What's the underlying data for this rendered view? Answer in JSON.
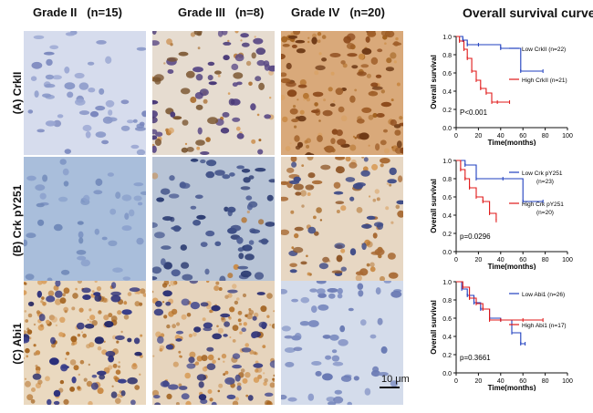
{
  "column_headers": [
    "Grade II",
    "(n=15)",
    "Grade III",
    "(n=8)",
    "Grade IV",
    "(n=20)"
  ],
  "row_labels": [
    "(A)  CrkII",
    "(B) Crk pY251",
    "(C)   Abi1"
  ],
  "scale_bar": "10 μm",
  "survival_title": "Overall survival curve",
  "colors": {
    "low": "#1f3fbf",
    "high": "#e01818"
  },
  "chart_data": [
    {
      "type": "line",
      "xlabel": "Time(months)",
      "ylabel": "Overall survival",
      "xlim": [
        0,
        100
      ],
      "ylim": [
        0,
        1.0
      ],
      "xticks": [
        0,
        20,
        40,
        60,
        80,
        100
      ],
      "yticks": [
        0.0,
        0.2,
        0.4,
        0.6,
        0.8,
        1.0
      ],
      "annotation": "P<0.001",
      "series": [
        {
          "name": "Low CrkII (n=22)",
          "color": "#1f3fbf",
          "x": [
            0,
            6,
            10,
            20,
            40,
            58,
            78
          ],
          "y": [
            1.0,
            0.96,
            0.91,
            0.91,
            0.87,
            0.62,
            0.62
          ]
        },
        {
          "name": "High CrkII (n=21)",
          "color": "#e01818",
          "x": [
            0,
            3,
            7,
            10,
            14,
            18,
            22,
            27,
            32,
            37,
            48
          ],
          "y": [
            1.0,
            0.95,
            0.86,
            0.76,
            0.62,
            0.52,
            0.43,
            0.38,
            0.28,
            0.28,
            0.28
          ]
        }
      ]
    },
    {
      "type": "line",
      "xlabel": "Time(months)",
      "ylabel": "Overall survival",
      "xlim": [
        0,
        100
      ],
      "ylim": [
        0,
        1.0
      ],
      "xticks": [
        0,
        20,
        40,
        60,
        80,
        100
      ],
      "yticks": [
        0.0,
        0.2,
        0.4,
        0.6,
        0.8,
        1.0
      ],
      "annotation": "p=0.0296",
      "series": [
        {
          "name": "Low Crk pY251",
          "sub": "(n=23)",
          "color": "#1f3fbf",
          "x": [
            0,
            8,
            18,
            42,
            60,
            78
          ],
          "y": [
            1.0,
            0.95,
            0.8,
            0.8,
            0.55,
            0.55
          ]
        },
        {
          "name": "High Crk pY251",
          "sub": "(n=20)",
          "color": "#e01818",
          "x": [
            0,
            4,
            8,
            12,
            18,
            24,
            30,
            36
          ],
          "y": [
            1.0,
            0.9,
            0.8,
            0.7,
            0.6,
            0.55,
            0.42,
            0.34
          ]
        }
      ]
    },
    {
      "type": "line",
      "xlabel": "Time(months)",
      "ylabel": "Overall survival",
      "xlim": [
        0,
        100
      ],
      "ylim": [
        0,
        1.0
      ],
      "xticks": [
        0,
        20,
        40,
        60,
        80,
        100
      ],
      "yticks": [
        0.0,
        0.2,
        0.4,
        0.6,
        0.8,
        1.0
      ],
      "annotation": "p=0.3661",
      "series": [
        {
          "name": "Low Abi1 (n=26)",
          "color": "#1f3fbf",
          "x": [
            0,
            5,
            10,
            16,
            22,
            30,
            40,
            50,
            58,
            62
          ],
          "y": [
            1.0,
            0.92,
            0.85,
            0.77,
            0.7,
            0.6,
            0.58,
            0.44,
            0.32,
            0.32
          ]
        },
        {
          "name": "High Abi1 (n=17)",
          "color": "#e01818",
          "x": [
            0,
            6,
            12,
            18,
            24,
            30,
            40,
            60,
            78
          ],
          "y": [
            1.0,
            0.94,
            0.82,
            0.76,
            0.7,
            0.58,
            0.58,
            0.58,
            0.58
          ]
        }
      ]
    }
  ]
}
